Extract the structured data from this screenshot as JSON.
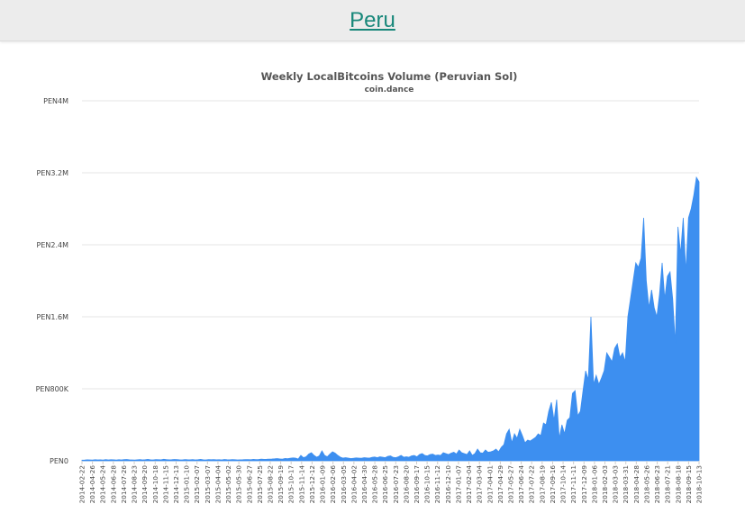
{
  "header": {
    "title": "Peru"
  },
  "chart_data": {
    "type": "area",
    "title": "Weekly LocalBitcoins Volume (Peruvian Sol)",
    "subtitle": "coin.dance",
    "series_color": "#3d8ff0",
    "grid": true,
    "ylim": [
      0,
      4000000
    ],
    "yticks": [
      {
        "value": 0,
        "label": "PEN0"
      },
      {
        "value": 800000,
        "label": "PEN800K"
      },
      {
        "value": 1600000,
        "label": "PEN1.6M"
      },
      {
        "value": 2400000,
        "label": "PEN2.4M"
      },
      {
        "value": 3200000,
        "label": "PEN3.2M"
      },
      {
        "value": 4000000,
        "label": "PEN4M"
      }
    ],
    "x_tick_labels": [
      "2014-02-22",
      "2014-04-26",
      "2014-05-24",
      "2014-06-28",
      "2014-07-26",
      "2014-08-23",
      "2014-09-20",
      "2014-10-18",
      "2014-11-15",
      "2014-12-13",
      "2015-01-10",
      "2015-02-07",
      "2015-03-07",
      "2015-04-04",
      "2015-05-02",
      "2015-05-30",
      "2015-06-27",
      "2015-07-25",
      "2015-08-22",
      "2015-09-19",
      "2015-10-17",
      "2015-11-14",
      "2015-12-12",
      "2016-01-09",
      "2016-02-06",
      "2016-03-05",
      "2016-04-02",
      "2016-04-30",
      "2016-05-28",
      "2016-06-25",
      "2016-07-23",
      "2016-08-20",
      "2016-09-17",
      "2016-10-15",
      "2016-11-12",
      "2016-12-10",
      "2017-01-07",
      "2017-02-04",
      "2017-03-04",
      "2017-04-01",
      "2017-04-29",
      "2017-05-27",
      "2017-06-24",
      "2017-07-22",
      "2017-08-19",
      "2017-09-16",
      "2017-10-14",
      "2017-11-11",
      "2017-12-09",
      "2018-01-06",
      "2018-02-03",
      "2018-03-03",
      "2018-03-31",
      "2018-04-28",
      "2018-05-26",
      "2018-06-23",
      "2018-07-21",
      "2018-08-18",
      "2018-09-15",
      "2018-10-13"
    ],
    "series": [
      {
        "values": [
          8000,
          9000,
          11000,
          10000,
          9000,
          12000,
          10000,
          11000,
          9000,
          13000,
          10000,
          12000,
          11000,
          9000,
          12000,
          10000,
          13000,
          15000,
          11000,
          10000,
          9000,
          11000,
          13000,
          10000,
          12000,
          16000,
          11000,
          10000,
          13000,
          12000,
          11000,
          17000,
          13000,
          11000,
          12000,
          15000,
          13000,
          11000,
          10000,
          14000,
          12000,
          11000,
          13000,
          10000,
          12000,
          16000,
          11000,
          10000,
          13000,
          12000,
          14000,
          11000,
          12000,
          10000,
          15000,
          12000,
          11000,
          13000,
          12000,
          10000,
          11000,
          12000,
          14000,
          13000,
          12000,
          16000,
          14000,
          15000,
          18000,
          16000,
          17000,
          19000,
          20000,
          22000,
          25000,
          21000,
          19000,
          26000,
          24000,
          28000,
          32000,
          30000,
          20000,
          60000,
          35000,
          45000,
          75000,
          90000,
          60000,
          40000,
          55000,
          110000,
          60000,
          45000,
          75000,
          100000,
          85000,
          60000,
          40000,
          30000,
          35000,
          30000,
          25000,
          28000,
          32000,
          30000,
          28000,
          35000,
          32000,
          30000,
          38000,
          42000,
          35000,
          45000,
          40000,
          35000,
          50000,
          55000,
          38000,
          35000,
          45000,
          60000,
          40000,
          45000,
          40000,
          55000,
          60000,
          45000,
          70000,
          80000,
          60000,
          55000,
          70000,
          75000,
          60000,
          65000,
          60000,
          90000,
          80000,
          70000,
          85000,
          95000,
          75000,
          120000,
          90000,
          80000,
          70000,
          110000,
          60000,
          80000,
          130000,
          90000,
          85000,
          120000,
          95000,
          100000,
          110000,
          130000,
          100000,
          150000,
          180000,
          300000,
          350000,
          200000,
          300000,
          250000,
          350000,
          280000,
          200000,
          230000,
          220000,
          240000,
          260000,
          300000,
          280000,
          420000,
          400000,
          550000,
          650000,
          450000,
          680000,
          250000,
          400000,
          300000,
          450000,
          480000,
          750000,
          780000,
          500000,
          550000,
          780000,
          1000000,
          900000,
          1600000,
          850000,
          950000,
          850000,
          920000,
          1000000,
          1200000,
          1150000,
          1100000,
          1250000,
          1300000,
          1150000,
          1200000,
          1100000,
          1600000,
          1800000,
          2000000,
          2200000,
          2150000,
          2250000,
          2700000,
          2000000,
          1700000,
          1900000,
          1700000,
          1600000,
          1850000,
          2200000,
          1800000,
          2050000,
          2100000,
          1800000,
          1300000,
          2600000,
          2300000,
          2700000,
          2100000,
          2700000,
          2800000,
          2950000,
          3150000,
          3100000
        ]
      }
    ]
  }
}
